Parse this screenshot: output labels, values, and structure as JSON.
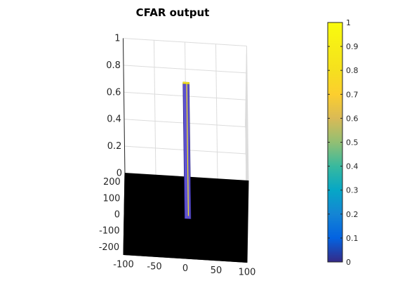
{
  "chart_data": {
    "type": "surface",
    "title": "CFAR output",
    "xlabel": "",
    "ylabel": "",
    "zlabel": "",
    "xlim": [
      -100,
      100
    ],
    "ylim": [
      -250,
      250
    ],
    "zlim": [
      0,
      1
    ],
    "xticks": [
      "-100",
      "-50",
      "0",
      "50",
      "100"
    ],
    "yticks": [
      "200",
      "100",
      "0",
      "-100",
      "-200"
    ],
    "zticks": [
      "0",
      "0.2",
      "0.4",
      "0.6",
      "0.8",
      "1"
    ],
    "grid": true,
    "colormap": "parula",
    "colorbar": {
      "limits": [
        0,
        1
      ],
      "ticks": [
        "0",
        "0.1",
        "0.2",
        "0.3",
        "0.4",
        "0.5",
        "0.6",
        "0.7",
        "0.8",
        "0.9",
        "1"
      ]
    },
    "floor_value": 0,
    "floor_color": "#000000",
    "detections": [
      {
        "x_range": [
          -2,
          8
        ],
        "y_range": [
          -5,
          5
        ],
        "value": 1
      }
    ]
  }
}
